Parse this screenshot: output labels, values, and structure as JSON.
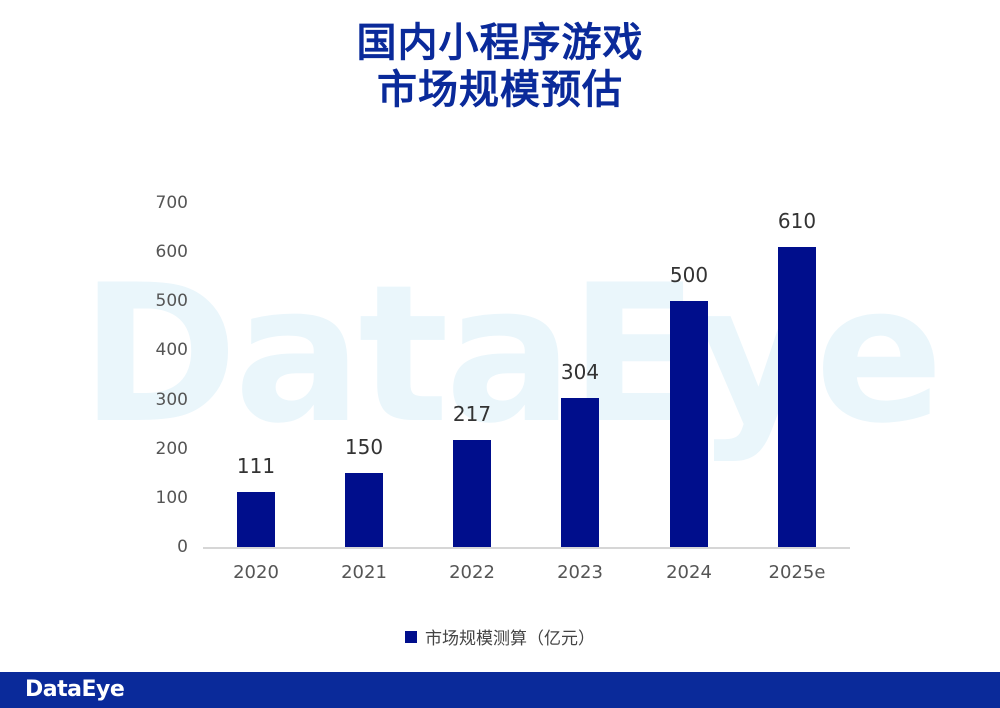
{
  "title": {
    "line1": "国内小程序游戏",
    "line2": "市场规模预估"
  },
  "watermark": "DataEye",
  "footer": {
    "logo": "DataEye"
  },
  "colors": {
    "bar": "#000e8c",
    "title": "#0a2a9a",
    "footer_bg": "#0a2a9a"
  },
  "chart_data": {
    "type": "bar",
    "title": "国内小程序游戏市场规模预估",
    "categories": [
      "2020",
      "2021",
      "2022",
      "2023",
      "2024",
      "2025e"
    ],
    "series": [
      {
        "name": "市场规模测算（亿元）",
        "values": [
          111,
          150,
          217,
          304,
          500,
          610
        ]
      }
    ],
    "value_labels": [
      "111",
      "150",
      "217",
      "304",
      "500",
      "610"
    ],
    "xlabel": "",
    "ylabel": "",
    "ylim": [
      0,
      700
    ],
    "yticks": [
      "700",
      "600",
      "500",
      "400",
      "300",
      "200",
      "100",
      "0"
    ],
    "grid": false,
    "legend_position": "bottom",
    "legend": [
      "市场规模测算（亿元）"
    ]
  }
}
